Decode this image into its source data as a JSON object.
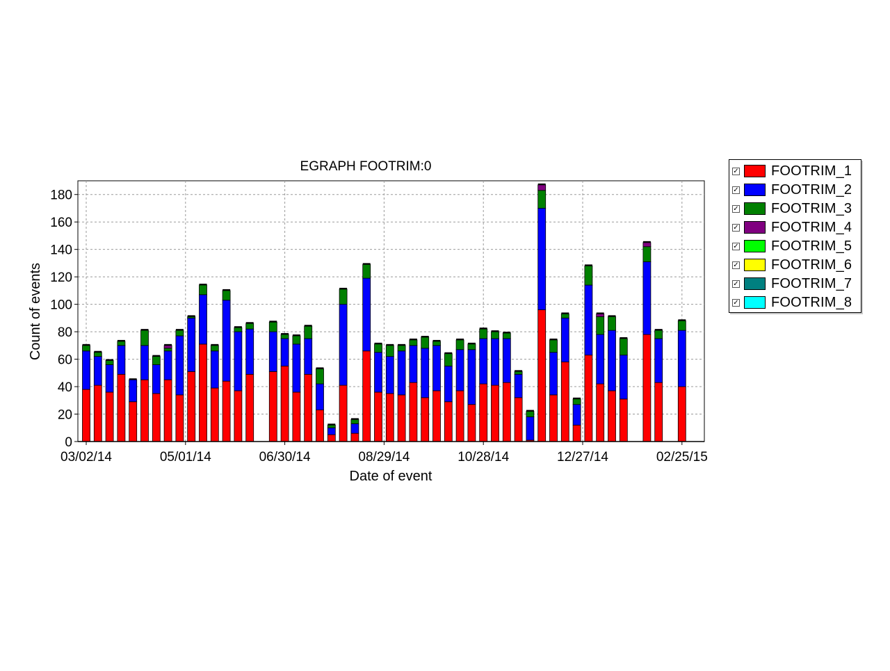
{
  "chart_data": {
    "type": "bar",
    "stacked": true,
    "title": "EGRAPH FOOTRIM:0",
    "xlabel": "Date of event",
    "ylabel": "Count of events",
    "ylim": [
      0,
      190
    ],
    "yticks": [
      0,
      20,
      40,
      60,
      80,
      100,
      120,
      140,
      160,
      180
    ],
    "xtick_labels": [
      "03/02/14",
      "05/01/14",
      "06/30/14",
      "08/29/14",
      "10/28/14",
      "12/27/14",
      "02/25/15"
    ],
    "grid": true,
    "legend_position": "right",
    "series": [
      {
        "name": "FOOTRIM_1",
        "color": "#ff0000",
        "values": [
          38,
          41,
          36,
          49,
          29,
          45,
          35,
          45,
          34,
          51,
          71,
          39,
          44,
          37,
          49,
          0,
          51,
          55,
          36,
          49,
          23,
          5,
          41,
          6,
          66,
          36,
          35,
          34,
          43,
          32,
          37,
          29,
          37,
          27,
          42,
          41,
          43,
          32,
          1,
          96,
          34,
          58,
          12,
          63,
          42,
          37,
          31,
          0,
          78,
          43,
          0,
          40,
          0
        ]
      },
      {
        "name": "FOOTRIM_2",
        "color": "#0000ff",
        "values": [
          28,
          21,
          20,
          21,
          16,
          25,
          21,
          21,
          43,
          39,
          36,
          27,
          59,
          43,
          33,
          0,
          29,
          20,
          35,
          26,
          19,
          5,
          59,
          7,
          53,
          29,
          27,
          32,
          27,
          36,
          33,
          26,
          30,
          40,
          33,
          34,
          32,
          17,
          17,
          74,
          31,
          32,
          15,
          51,
          36,
          44,
          32,
          0,
          53,
          32,
          0,
          41,
          0
        ]
      },
      {
        "name": "FOOTRIM_3",
        "color": "#008000",
        "values": [
          4,
          3,
          3,
          3,
          0,
          11,
          6,
          2,
          4,
          1,
          7,
          4,
          7,
          3,
          4,
          0,
          7,
          3,
          6,
          9,
          11,
          2,
          11,
          3,
          10,
          6,
          8,
          4,
          4,
          8,
          3,
          9,
          7,
          4,
          7,
          5,
          4,
          2,
          4,
          13,
          9,
          3,
          4,
          14,
          13,
          10,
          12,
          0,
          11,
          6,
          0,
          7,
          0
        ]
      },
      {
        "name": "FOOTRIM_4",
        "color": "#800080",
        "values": [
          0,
          0,
          0,
          0,
          0,
          0,
          0,
          2,
          0,
          0,
          0,
          0,
          0,
          0,
          0,
          0,
          0,
          0,
          0,
          0,
          0,
          0,
          0,
          0,
          0,
          0,
          0,
          0,
          0,
          0,
          0,
          0,
          0,
          0,
          0,
          0,
          0,
          0,
          0,
          4,
          0,
          0,
          0,
          0,
          2,
          0,
          0,
          0,
          3,
          0,
          0,
          0,
          0
        ]
      },
      {
        "name": "FOOTRIM_5",
        "color": "#00ff00",
        "values": [
          0,
          0,
          0,
          0,
          0,
          0,
          0,
          0,
          0,
          0,
          0,
          0,
          0,
          0,
          0,
          0,
          0,
          0,
          0,
          0,
          0,
          0,
          0,
          0,
          0,
          0,
          0,
          0,
          0,
          0,
          0,
          0,
          0,
          0,
          0,
          0,
          0,
          0,
          0,
          0,
          0,
          0,
          0,
          0,
          0,
          0,
          0,
          0,
          0,
          0,
          0,
          0,
          0
        ]
      },
      {
        "name": "FOOTRIM_6",
        "color": "#ffff00",
        "values": [
          0,
          0,
          0,
          0,
          0,
          0,
          0,
          0,
          0,
          0,
          0,
          0,
          0,
          0,
          0,
          0,
          0,
          0,
          0,
          0,
          0,
          0,
          0,
          0,
          0,
          0,
          0,
          0,
          0,
          0,
          0,
          0,
          0,
          0,
          0,
          0,
          0,
          0,
          0,
          0,
          0,
          0,
          0,
          0,
          0,
          0,
          0,
          0,
          0,
          0,
          0,
          0,
          0
        ]
      },
      {
        "name": "FOOTRIM_7",
        "color": "#008080",
        "values": [
          0,
          0,
          0,
          0,
          0,
          0,
          0,
          0,
          0,
          0,
          0,
          0,
          0,
          0,
          0,
          0,
          0,
          0,
          0,
          0,
          0,
          0,
          0,
          0,
          0,
          0,
          0,
          0,
          0,
          0,
          0,
          0,
          0,
          0,
          0,
          0,
          0,
          0,
          0,
          0,
          0,
          0,
          0,
          0,
          0,
          0,
          0,
          0,
          0,
          0,
          0,
          0,
          0
        ]
      },
      {
        "name": "FOOTRIM_8",
        "color": "#00ffff",
        "values": [
          0,
          0,
          0,
          0,
          0,
          0,
          0,
          0,
          0,
          0,
          0,
          0,
          0,
          0,
          0,
          0,
          0,
          0,
          0,
          0,
          0,
          0,
          0,
          0,
          0,
          0,
          0,
          0,
          0,
          0,
          0,
          0,
          0,
          0,
          0,
          0,
          0,
          0,
          0,
          0,
          0,
          0,
          0,
          0,
          0,
          0,
          0,
          0,
          0,
          0,
          0,
          0,
          0
        ]
      }
    ]
  },
  "legend": {
    "items": [
      {
        "label": "FOOTRIM_1",
        "color": "#ff0000",
        "checked": true
      },
      {
        "label": "FOOTRIM_2",
        "color": "#0000ff",
        "checked": true
      },
      {
        "label": "FOOTRIM_3",
        "color": "#008000",
        "checked": true
      },
      {
        "label": "FOOTRIM_4",
        "color": "#800080",
        "checked": true
      },
      {
        "label": "FOOTRIM_5",
        "color": "#00ff00",
        "checked": true
      },
      {
        "label": "FOOTRIM_6",
        "color": "#ffff00",
        "checked": true
      },
      {
        "label": "FOOTRIM_7",
        "color": "#008080",
        "checked": true
      },
      {
        "label": "FOOTRIM_8",
        "color": "#00ffff",
        "checked": true
      }
    ]
  }
}
